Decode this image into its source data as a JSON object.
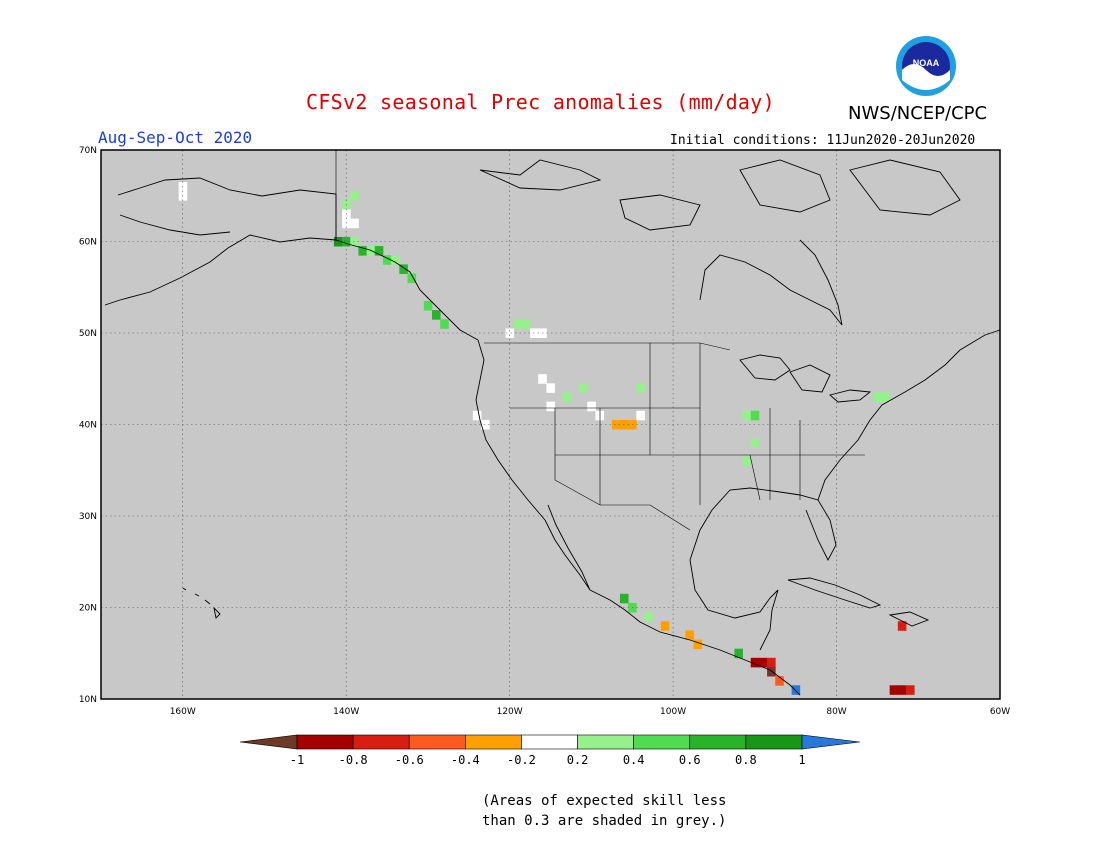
{
  "header": {
    "title": "CFSv2 seasonal Prec anomalies (mm/day)",
    "org": "NWS/NCEP/CPC",
    "season": "Aug-Sep-Oct 2020",
    "initial_conditions": "Initial conditions: 11Jun2020-20Jun2020",
    "logo_text": "NOAA"
  },
  "map": {
    "projection": "lat-lon",
    "lat_range": [
      10,
      70
    ],
    "lon_range": [
      -170,
      -60
    ],
    "lat_ticks": [
      "70N",
      "60N",
      "50N",
      "40N",
      "30N",
      "20N",
      "10N"
    ],
    "lon_ticks": [
      "160W",
      "140W",
      "120W",
      "100W",
      "80W",
      "60W"
    ],
    "land_color": "#c8c8c8",
    "grid": "dotted",
    "boundary_color": "#000000"
  },
  "colorbar": {
    "labels": [
      "-1",
      "-0.8",
      "-0.6",
      "-0.4",
      "-0.2",
      "0.2",
      "0.4",
      "0.6",
      "0.8",
      "1"
    ],
    "bins": [
      {
        "range": "< -1",
        "color": "#6e3a28"
      },
      {
        "range": "-1 to -0.8",
        "color": "#a50000"
      },
      {
        "range": "-0.8 to -0.6",
        "color": "#d81e10"
      },
      {
        "range": "-0.6 to -0.4",
        "color": "#ff5a1e"
      },
      {
        "range": "-0.4 to -0.2",
        "color": "#ffa000"
      },
      {
        "range": "-0.2 to 0.2",
        "color": "#ffffff"
      },
      {
        "range": "0.2 to 0.4",
        "color": "#96f08c"
      },
      {
        "range": "0.4 to 0.6",
        "color": "#50dc50"
      },
      {
        "range": "0.6 to 0.8",
        "color": "#28b428"
      },
      {
        "range": "0.8 to 1",
        "color": "#189618"
      },
      {
        "range": "> 1",
        "color": "#2878dc"
      }
    ]
  },
  "footer": {
    "note_line1": "(Areas of expected skill less",
    "note_line2": "than 0.3 are shaded in grey.)"
  },
  "anomaly_cells": [
    {
      "lat": 66,
      "lon": -160,
      "value": 0.0
    },
    {
      "lat": 65,
      "lon": -160,
      "value": 0.0
    },
    {
      "lat": 64,
      "lon": -140,
      "value": 0.3
    },
    {
      "lat": 65,
      "lon": -139,
      "value": 0.3
    },
    {
      "lat": 63,
      "lon": -140,
      "value": 0.0
    },
    {
      "lat": 62,
      "lon": -140,
      "value": 0.0
    },
    {
      "lat": 62,
      "lon": -139,
      "value": 0.0
    },
    {
      "lat": 60,
      "lon": -141,
      "value": 0.9
    },
    {
      "lat": 60,
      "lon": -140,
      "value": 0.7
    },
    {
      "lat": 60,
      "lon": -139,
      "value": 0.3
    },
    {
      "lat": 59,
      "lon": -138,
      "value": 0.7
    },
    {
      "lat": 59,
      "lon": -137,
      "value": 0.3
    },
    {
      "lat": 59,
      "lon": -136,
      "value": 0.7
    },
    {
      "lat": 58,
      "lon": -135,
      "value": 0.5
    },
    {
      "lat": 58,
      "lon": -134,
      "value": 0.3
    },
    {
      "lat": 57,
      "lon": -133,
      "value": 0.7
    },
    {
      "lat": 56,
      "lon": -132,
      "value": 0.5
    },
    {
      "lat": 53,
      "lon": -130,
      "value": 0.5
    },
    {
      "lat": 52,
      "lon": -129,
      "value": 0.7
    },
    {
      "lat": 51,
      "lon": -128,
      "value": 0.5
    },
    {
      "lat": 51,
      "lon": -119,
      "value": 0.3
    },
    {
      "lat": 51,
      "lon": -118,
      "value": 0.3
    },
    {
      "lat": 50,
      "lon": -120,
      "value": 0.0
    },
    {
      "lat": 50,
      "lon": -117,
      "value": 0.0
    },
    {
      "lat": 50,
      "lon": -116,
      "value": 0.0
    },
    {
      "lat": 41,
      "lon": -124,
      "value": 0.0
    },
    {
      "lat": 40,
      "lon": -123,
      "value": 0.0
    },
    {
      "lat": 45,
      "lon": -116,
      "value": 0.0
    },
    {
      "lat": 44,
      "lon": -115,
      "value": 0.0
    },
    {
      "lat": 42,
      "lon": -115,
      "value": 0.0
    },
    {
      "lat": 43,
      "lon": -113,
      "value": 0.3
    },
    {
      "lat": 44,
      "lon": -111,
      "value": 0.3
    },
    {
      "lat": 42,
      "lon": -110,
      "value": 0.0
    },
    {
      "lat": 41,
      "lon": -109,
      "value": 0.0
    },
    {
      "lat": 40,
      "lon": -107,
      "value": -0.3
    },
    {
      "lat": 40,
      "lon": -106,
      "value": -0.3
    },
    {
      "lat": 40,
      "lon": -105,
      "value": -0.3
    },
    {
      "lat": 41,
      "lon": -104,
      "value": 0.0
    },
    {
      "lat": 44,
      "lon": -104,
      "value": 0.3
    },
    {
      "lat": 41,
      "lon": -91,
      "value": 0.3
    },
    {
      "lat": 41,
      "lon": -90,
      "value": 0.5
    },
    {
      "lat": 38,
      "lon": -90,
      "value": 0.3
    },
    {
      "lat": 36,
      "lon": -91,
      "value": 0.3
    },
    {
      "lat": 43,
      "lon": -74,
      "value": 0.3
    },
    {
      "lat": 43,
      "lon": -75,
      "value": 0.3
    },
    {
      "lat": 21,
      "lon": -106,
      "value": 0.7
    },
    {
      "lat": 20,
      "lon": -105,
      "value": 0.5
    },
    {
      "lat": 19,
      "lon": -103,
      "value": 0.3
    },
    {
      "lat": 18,
      "lon": -101,
      "value": -0.3
    },
    {
      "lat": 17,
      "lon": -98,
      "value": -0.3
    },
    {
      "lat": 16,
      "lon": -97,
      "value": -0.3
    },
    {
      "lat": 15,
      "lon": -92,
      "value": 0.7
    },
    {
      "lat": 14,
      "lon": -90,
      "value": -0.9
    },
    {
      "lat": 14,
      "lon": -89,
      "value": -0.9
    },
    {
      "lat": 14,
      "lon": -88,
      "value": -0.7
    },
    {
      "lat": 13,
      "lon": -88,
      "value": -1.1
    },
    {
      "lat": 12,
      "lon": -87,
      "value": -0.5
    },
    {
      "lat": 11,
      "lon": -85,
      "value": 1.1
    },
    {
      "lat": 11,
      "lon": -73,
      "value": -0.9
    },
    {
      "lat": 11,
      "lon": -72,
      "value": -0.9
    },
    {
      "lat": 11,
      "lon": -71,
      "value": -0.7
    },
    {
      "lat": 18,
      "lon": -72,
      "value": -0.7
    }
  ]
}
